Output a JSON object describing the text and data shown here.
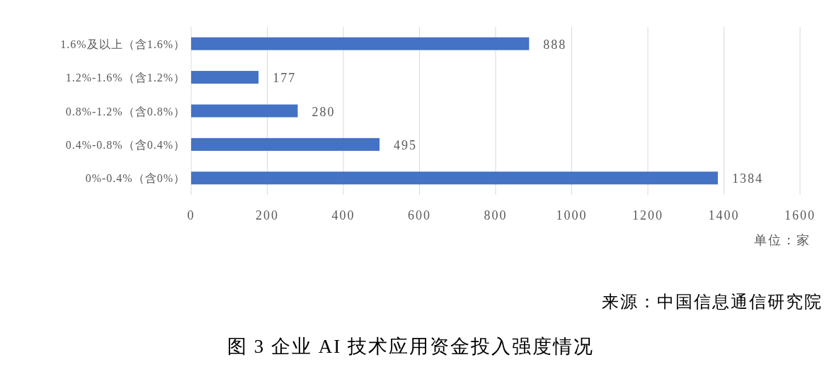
{
  "chart_data": {
    "type": "bar",
    "orientation": "horizontal",
    "title": "图 3 企业 AI 技术应用资金投入强度情况",
    "xlabel": "单位：家",
    "annotations": [
      "来源：中国信息通信研究院"
    ],
    "categories": [
      "1.6%及以上（含1.6%）",
      "1.2%-1.6%（含1.2%）",
      "0.8%-1.2%（含0.8%）",
      "0.4%-0.8%（含0.4%）",
      "0%-0.4%（含0%）"
    ],
    "values": [
      888,
      177,
      280,
      495,
      1384
    ],
    "color": "#4472c4",
    "xlim": [
      0,
      1600
    ],
    "xticks": [
      0,
      200,
      400,
      600,
      800,
      1000,
      1200,
      1400,
      1600
    ],
    "grid": "x",
    "data_labels": true
  }
}
